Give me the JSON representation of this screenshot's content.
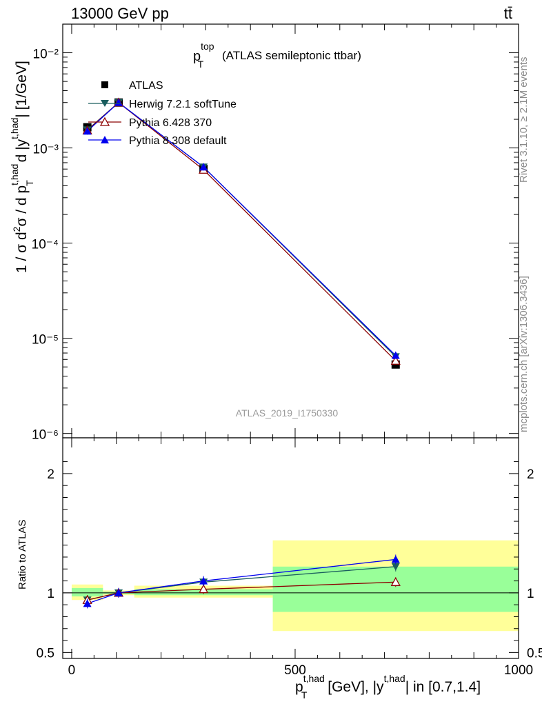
{
  "header": {
    "left": "13000 GeV pp",
    "right": "tt̄"
  },
  "side_labels": {
    "rivet": "Rivet 3.1.10, ≥ 2.1M events",
    "mcplots": "mcplots.cern.ch [arXiv:1306.3436]"
  },
  "chart_data": [
    {
      "type": "line",
      "panel": "main",
      "title_main": "p",
      "title_sup": "top",
      "title_sub": "T",
      "title_rest": "(ATLAS semileptonic ttbar)",
      "ylabel": "1 / σ d²σ / d p_T^{t,had} d |y^{t,had}| [1/GeV]",
      "yscale": "log",
      "ylim": [
        9e-07,
        0.02
      ],
      "xlim": [
        -20,
        1000
      ],
      "y_tick_labels": [
        "10⁻⁶",
        "10⁻⁵",
        "10⁻⁴",
        "10⁻³",
        "10⁻²"
      ],
      "watermark": "ATLAS_2019_I1750330",
      "legend_position": "top-left",
      "x": [
        35,
        105,
        295,
        725
      ],
      "series": [
        {
          "name": "ATLAS",
          "color": "#000000",
          "marker": "square",
          "values": [
            0.00165,
            0.003,
            0.0006,
            5.3e-06
          ]
        },
        {
          "name": "Herwig 7.2.1 softTune",
          "color": "#1a5e5e",
          "marker": "triangle-down",
          "values": [
            0.00155,
            0.003,
            0.00063,
            6.4e-06
          ]
        },
        {
          "name": "Pythia 6.428 370",
          "color": "#8b0000",
          "marker": "triangle-up-open",
          "values": [
            0.00153,
            0.003,
            0.00059,
            5.8e-06
          ]
        },
        {
          "name": "Pythia 8.308 default",
          "color": "#0000ee",
          "marker": "triangle-up",
          "values": [
            0.0015,
            0.003,
            0.00063,
            6.6e-06
          ]
        }
      ]
    },
    {
      "type": "line",
      "panel": "ratio",
      "ylabel": "Ratio to ATLAS",
      "ylim": [
        0.45,
        2.3
      ],
      "y_tick_labels": [
        "0.5",
        "1",
        "2"
      ],
      "x_tick_labels": [
        "0",
        "500",
        "1000"
      ],
      "xlabel_main": "p",
      "xlabel_sup": "t,had",
      "xlabel_sub": "T",
      "xlabel_mid": "[GeV], |y",
      "xlabel_sup2": "t,had",
      "xlabel_end": "| in [0.7,1.4]",
      "x": [
        35,
        105,
        295,
        725
      ],
      "bands": [
        {
          "x0": 0,
          "x1": 70,
          "yellow": [
            0.94,
            1.07
          ],
          "green": [
            0.97,
            1.04
          ]
        },
        {
          "x0": 70,
          "x1": 140,
          "yellow": [
            0.98,
            1.02
          ],
          "green": [
            0.99,
            1.01
          ]
        },
        {
          "x0": 140,
          "x1": 450,
          "yellow": [
            0.96,
            1.06
          ],
          "green": [
            0.98,
            1.03
          ]
        },
        {
          "x0": 450,
          "x1": 1000,
          "yellow": [
            0.68,
            1.44
          ],
          "green": [
            0.84,
            1.22
          ]
        }
      ],
      "series": [
        {
          "name": "Herwig 7.2.1 softTune",
          "color": "#1a5e5e",
          "values": [
            0.94,
            1.0,
            1.09,
            1.22
          ]
        },
        {
          "name": "Pythia 6.428 370",
          "color": "#8b0000",
          "values": [
            0.94,
            1.0,
            1.03,
            1.09
          ]
        },
        {
          "name": "Pythia 8.308 default",
          "color": "#0000ee",
          "values": [
            0.91,
            1.0,
            1.1,
            1.28
          ]
        }
      ]
    }
  ]
}
